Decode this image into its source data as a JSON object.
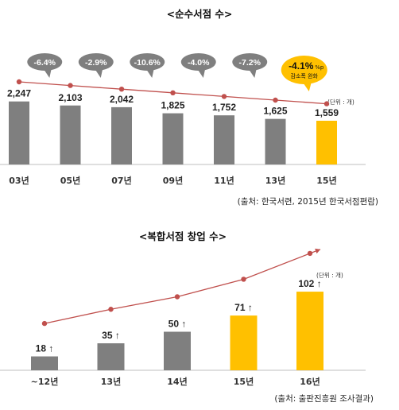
{
  "chart_data": [
    {
      "type": "bar",
      "title": "<순수서점 수>",
      "unit_label": "(단위 : 개)",
      "source": "(출처: 한국서련, 2015년 한국서점편람)",
      "categories": [
        "03년",
        "05년",
        "07년",
        "09년",
        "11년",
        "13년",
        "15년"
      ],
      "values": [
        2247,
        2103,
        2042,
        1825,
        1752,
        1625,
        1559
      ],
      "value_labels": [
        "2,247",
        "2,103",
        "2,042",
        "1,825",
        "1,752",
        "1,625",
        "1,559"
      ],
      "changes": [
        "-6.4%",
        "-2.9%",
        "-10.6%",
        "-4.0%",
        "-7.2%",
        "-4.1%"
      ],
      "highlight_note": "감소폭 완화",
      "highlight_note_prefix": "%p",
      "highlight_index": 6,
      "colors": {
        "bar": "#7f7f7f",
        "highlight": "#ffc000",
        "line": "#c0504d",
        "bubble": "#7f7f7f"
      }
    },
    {
      "type": "bar",
      "title": "<복합서점 창업 수>",
      "unit_label": "(단위 : 개)",
      "source": "(출처: 출판진흥원  조사결과)",
      "categories": [
        "~12년",
        "13년",
        "14년",
        "15년",
        "16년"
      ],
      "values": [
        18,
        35,
        50,
        71,
        102
      ],
      "value_labels": [
        "18 ↑",
        "35 ↑",
        "50 ↑",
        "71 ↑",
        "102 ↑"
      ],
      "highlight_indices": [
        3,
        4
      ],
      "colors": {
        "bar": "#7f7f7f",
        "highlight": "#ffc000",
        "line": "#c0504d"
      }
    }
  ]
}
